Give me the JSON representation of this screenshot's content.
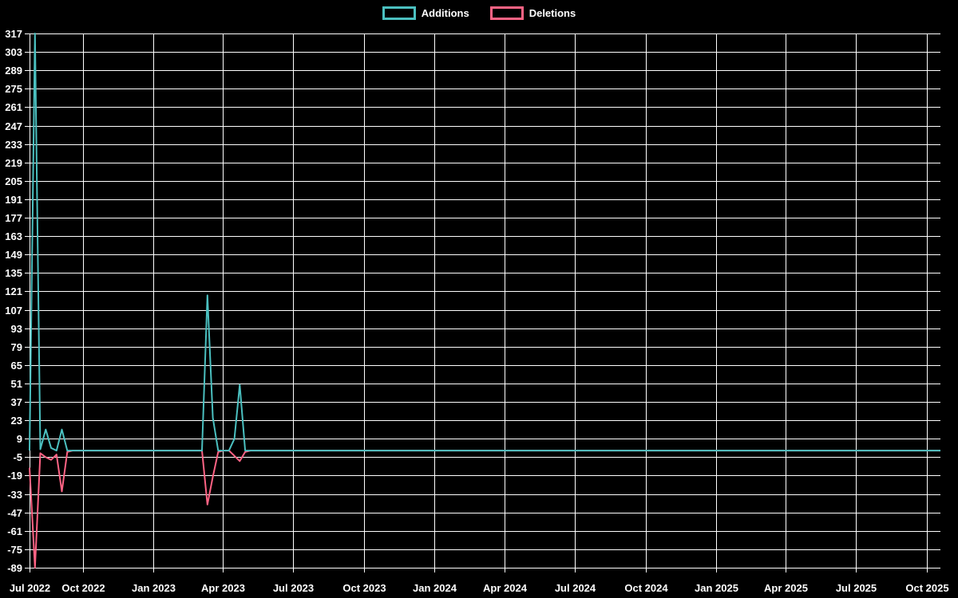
{
  "chart_data": {
    "type": "line",
    "title": "",
    "legend_position": "top",
    "background_color": "#000000",
    "grid": true,
    "grid_color": "#ffffff",
    "text_color": "#ffffff",
    "axis_start": "2022-07-24",
    "axis_end": "2025-10-19",
    "xlabel": "",
    "ylabel": "",
    "ylim": [
      -89,
      317
    ],
    "y_tick_step": 14,
    "y_ticks": [
      317,
      303,
      289,
      275,
      261,
      247,
      233,
      219,
      205,
      191,
      177,
      163,
      149,
      135,
      121,
      107,
      93,
      79,
      65,
      51,
      37,
      23,
      9,
      -5,
      -19,
      -33,
      -47,
      -61,
      -75,
      -89
    ],
    "x_ticks": [
      {
        "label": "Jul 2022",
        "date": "2022-07-24"
      },
      {
        "label": "Oct 2022",
        "date": "2022-10-01"
      },
      {
        "label": "Jan 2023",
        "date": "2023-01-01"
      },
      {
        "label": "Apr 2023",
        "date": "2023-04-01"
      },
      {
        "label": "Jul 2023",
        "date": "2023-07-01"
      },
      {
        "label": "Oct 2023",
        "date": "2023-10-01"
      },
      {
        "label": "Jan 2024",
        "date": "2024-01-01"
      },
      {
        "label": "Apr 2024",
        "date": "2024-04-01"
      },
      {
        "label": "Jul 2024",
        "date": "2024-07-01"
      },
      {
        "label": "Oct 2024",
        "date": "2024-10-01"
      },
      {
        "label": "Jan 2025",
        "date": "2025-01-01"
      },
      {
        "label": "Apr 2025",
        "date": "2025-04-01"
      },
      {
        "label": "Jul 2025",
        "date": "2025-07-01"
      },
      {
        "label": "Oct 2025",
        "date": "2025-10-01"
      }
    ],
    "series": [
      {
        "name": "Additions",
        "color": "#4bc0c0",
        "points": [
          [
            "2022-07-24",
            0
          ],
          [
            "2022-07-31",
            317
          ],
          [
            "2022-08-07",
            1
          ],
          [
            "2022-08-14",
            16
          ],
          [
            "2022-08-21",
            2
          ],
          [
            "2022-08-28",
            0
          ],
          [
            "2022-09-04",
            16
          ],
          [
            "2022-09-11",
            0
          ],
          [
            "2023-03-05",
            0
          ],
          [
            "2023-03-12",
            118
          ],
          [
            "2023-03-19",
            25
          ],
          [
            "2023-03-26",
            0
          ],
          [
            "2023-04-09",
            0
          ],
          [
            "2023-04-16",
            9
          ],
          [
            "2023-04-23",
            50
          ],
          [
            "2023-04-30",
            0
          ],
          [
            "2023-05-07",
            0
          ],
          [
            "2025-10-19",
            0
          ]
        ]
      },
      {
        "name": "Deletions",
        "color": "#ff6384",
        "points": [
          [
            "2022-07-24",
            -13
          ],
          [
            "2022-07-31",
            -89
          ],
          [
            "2022-08-07",
            -2
          ],
          [
            "2022-08-14",
            -5
          ],
          [
            "2022-08-21",
            -7
          ],
          [
            "2022-08-28",
            -3
          ],
          [
            "2022-09-04",
            -31
          ],
          [
            "2022-09-11",
            -1
          ],
          [
            "2022-09-18",
            0
          ],
          [
            "2023-03-05",
            0
          ],
          [
            "2023-03-12",
            -41
          ],
          [
            "2023-03-19",
            -20
          ],
          [
            "2023-03-26",
            -1
          ],
          [
            "2023-04-02",
            0
          ],
          [
            "2023-04-09",
            0
          ],
          [
            "2023-04-16",
            -4
          ],
          [
            "2023-04-23",
            -8
          ],
          [
            "2023-04-30",
            -1
          ],
          [
            "2023-05-07",
            0
          ],
          [
            "2025-10-19",
            0
          ]
        ]
      }
    ]
  }
}
